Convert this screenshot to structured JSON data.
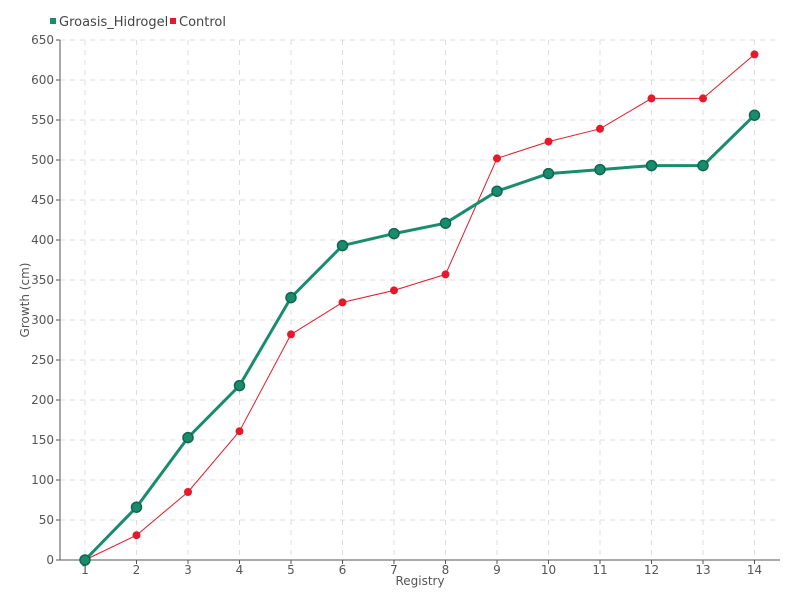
{
  "chart_data": {
    "type": "line",
    "title": "",
    "xlabel": "Registry",
    "ylabel": "Growth (cm)",
    "x": [
      1,
      2,
      3,
      4,
      5,
      6,
      7,
      8,
      9,
      10,
      11,
      12,
      13,
      14
    ],
    "ylim": [
      0,
      650
    ],
    "yticks": [
      0,
      50,
      100,
      150,
      200,
      250,
      300,
      350,
      400,
      450,
      500,
      550,
      600,
      650
    ],
    "grid": true,
    "legend_position": "top-left",
    "series": [
      {
        "name": "Groasis_Hidrogel",
        "color": "#1a8c6e",
        "values": [
          0,
          66,
          153,
          218,
          328,
          393,
          408,
          421,
          461,
          483,
          488,
          493,
          493,
          556
        ]
      },
      {
        "name": "Control",
        "color": "#e31a2b",
        "values": [
          0,
          31,
          85,
          161,
          282,
          322,
          337,
          357,
          502,
          523,
          539,
          577,
          577,
          632
        ]
      }
    ]
  }
}
